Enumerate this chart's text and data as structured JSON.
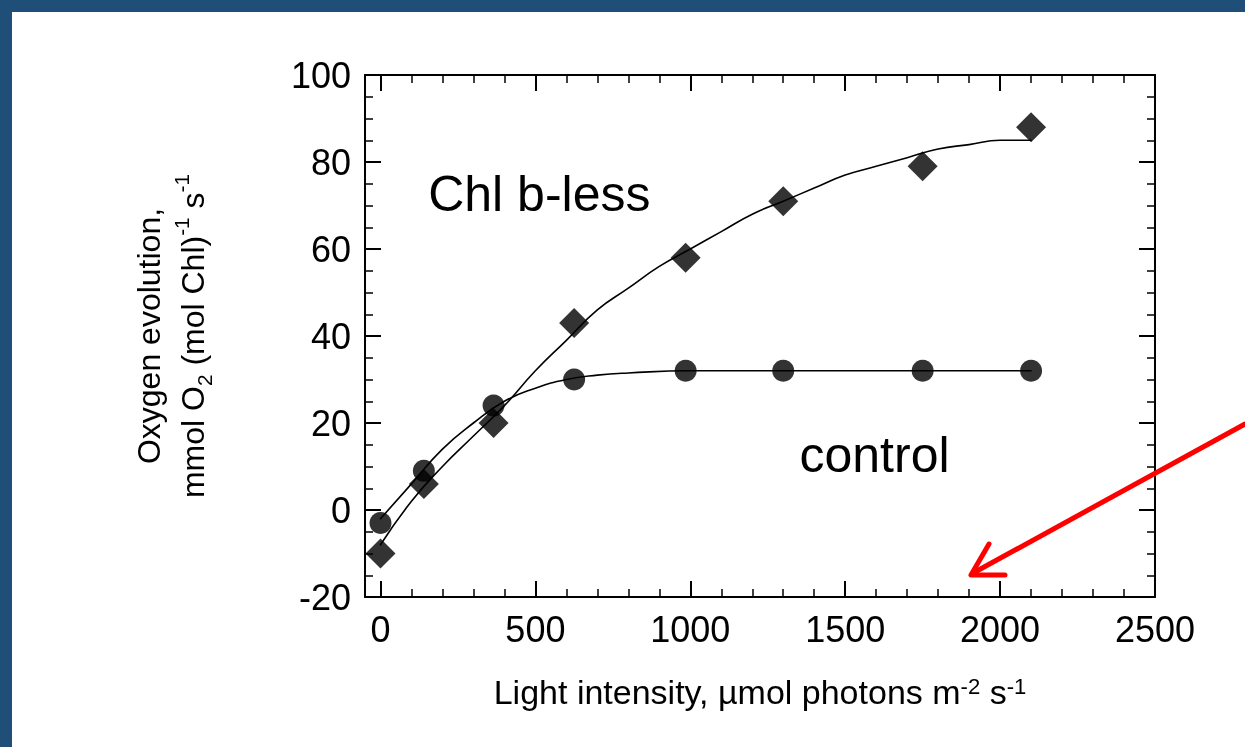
{
  "chart_data": {
    "type": "scatter",
    "xlabel": "Light intensity, µmol photons m$^{-2}$ s$^{-1}$",
    "ylabel": "Oxygen evolution,\nmmol O$_{2}$ (mol Chl)$^{-1}$ s$^{-1}$",
    "xlim": [
      -50,
      2500
    ],
    "xticks": [
      0,
      500,
      1000,
      1500,
      2000,
      2500
    ],
    "ylim": [
      -20,
      100
    ],
    "yticks": [
      -20,
      0,
      20,
      40,
      60,
      80,
      100
    ],
    "grid": false,
    "series": [
      {
        "name": "Chl b-less",
        "marker": "diamond",
        "color": "#000000",
        "x": [
          0,
          140,
          365,
          625,
          985,
          1300,
          1750,
          2100
        ],
        "values": [
          -10,
          6,
          20,
          43,
          58,
          71,
          79,
          88
        ]
      },
      {
        "name": "control",
        "marker": "circle",
        "color": "#000000",
        "x": [
          0,
          140,
          365,
          625,
          985,
          1300,
          1750,
          2100
        ],
        "values": [
          -3,
          9,
          24,
          30,
          32,
          32,
          32,
          32
        ]
      },
      {
        "type": "line",
        "marker": "none",
        "color": "#000000",
        "x": [
          0,
          100,
          200,
          300,
          400,
          500,
          600,
          700,
          800,
          900,
          1000,
          1100,
          1200,
          1300,
          1400,
          1500,
          1600,
          1700,
          1800,
          1900,
          2000,
          2100
        ],
        "values": [
          -8,
          2,
          10,
          17,
          24,
          32,
          39,
          46,
          51,
          56,
          60,
          64,
          68,
          71,
          74,
          77,
          79,
          81,
          83,
          84,
          85,
          85
        ]
      },
      {
        "type": "line",
        "marker": "none",
        "color": "#000000",
        "x": [
          0,
          100,
          200,
          300,
          400,
          500,
          600,
          700,
          800,
          1000,
          1500,
          2100
        ],
        "values": [
          -2,
          6,
          14,
          20,
          25,
          28,
          30,
          31,
          31.5,
          32,
          32,
          32
        ]
      }
    ]
  }
}
